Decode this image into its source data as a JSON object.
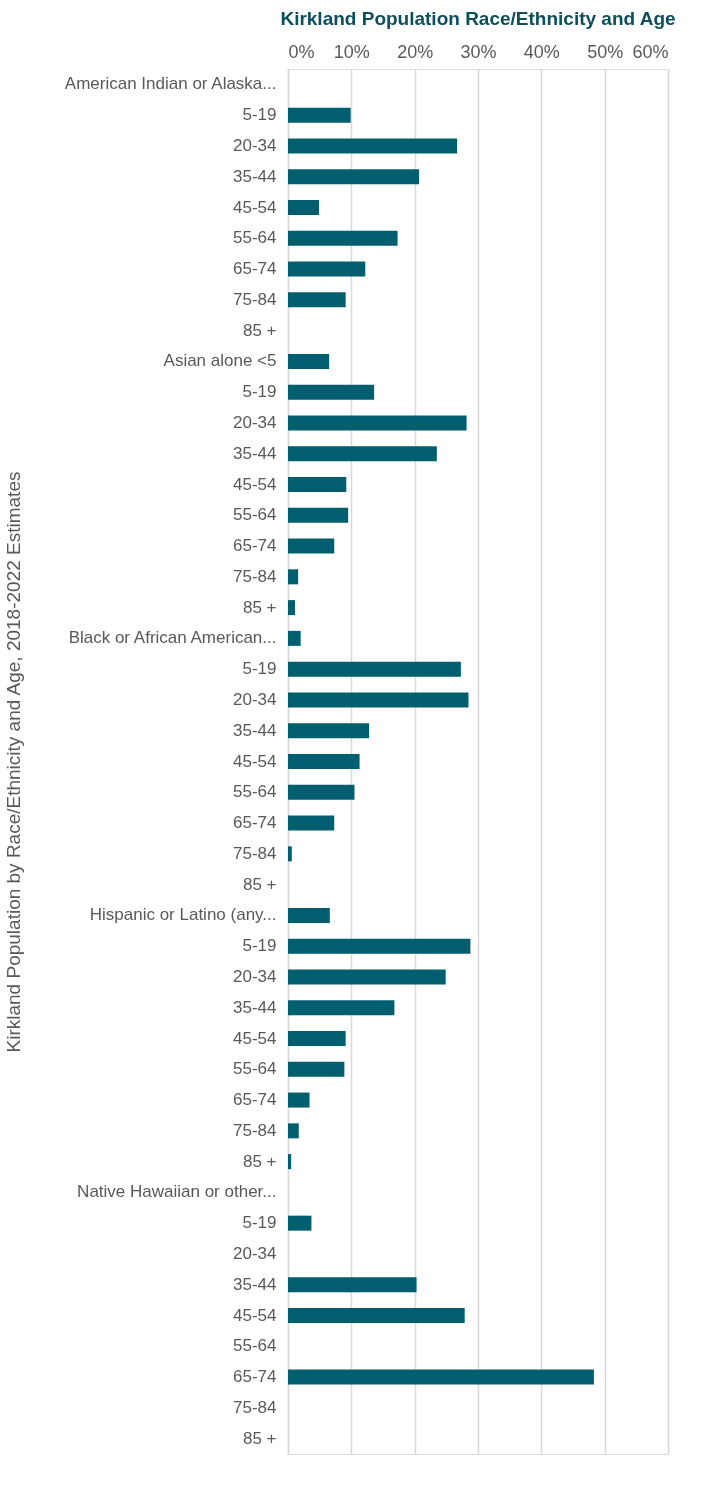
{
  "chart_data": {
    "type": "bar",
    "orientation": "horizontal",
    "title": "Kirkland Population Race/Ethnicity and Age",
    "ylabel": "Kirkland Population by Race/Ethnicity and Age, 2018-2022 Estimates",
    "categories": [
      "American Indian or Alaska...",
      "5-19",
      "20-34",
      "35-44",
      "45-54",
      "55-64",
      "65-74",
      "75-84",
      "85 +",
      "Asian alone <5",
      "5-19",
      "20-34",
      "35-44",
      "45-54",
      "55-64",
      "65-74",
      "75-84",
      "85 +",
      "Black or African American...",
      "5-19",
      "20-34",
      "35-44",
      "45-54",
      "55-64",
      "65-74",
      "75-84",
      "85 +",
      "Hispanic or Latino (any...",
      "5-19",
      "20-34",
      "35-44",
      "45-54",
      "55-64",
      "65-74",
      "75-84",
      "85 +",
      "Native Hawaiian or other...",
      "5-19",
      "20-34",
      "35-44",
      "45-54",
      "55-64",
      "65-74",
      "75-84",
      "85 +"
    ],
    "values": [
      null,
      9.9,
      26.7,
      20.7,
      4.9,
      17.3,
      12.2,
      9.1,
      null,
      6.5,
      13.6,
      28.2,
      23.5,
      9.2,
      9.5,
      7.3,
      1.6,
      1.1,
      2.0,
      27.3,
      28.5,
      12.8,
      11.3,
      10.5,
      7.3,
      0.6,
      null,
      6.6,
      28.8,
      24.9,
      16.8,
      9.1,
      8.9,
      3.4,
      1.7,
      0.5,
      null,
      3.7,
      null,
      20.3,
      27.9,
      null,
      48.3,
      null,
      null
    ],
    "color": "#005e6e",
    "xlim": [
      0,
      60
    ],
    "xticks": [
      {
        "value": 0,
        "label": "0%"
      },
      {
        "value": 10,
        "label": "10%"
      },
      {
        "value": 20,
        "label": "20%"
      },
      {
        "value": 30,
        "label": "30%"
      },
      {
        "value": 40,
        "label": "40%"
      },
      {
        "value": 50,
        "label": "50%"
      },
      {
        "value": 60,
        "label": "60%"
      }
    ],
    "grid": "x"
  }
}
